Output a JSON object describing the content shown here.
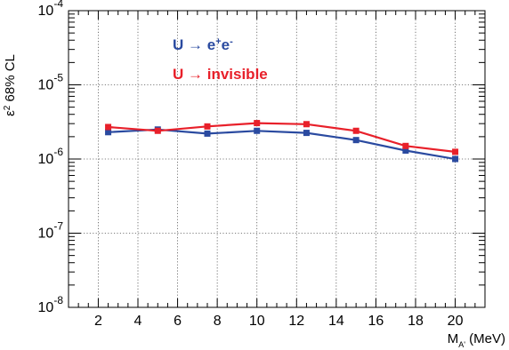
{
  "chart_data": {
    "type": "line",
    "xlabel": {
      "main": "M",
      "sub": "A'",
      "unit": " (MeV)"
    },
    "ylabel": {
      "pre": "ε",
      "sup": "2",
      "post": " 68% CL"
    },
    "xlim": [
      0.5,
      21.5
    ],
    "ylim": [
      1e-08,
      0.0001
    ],
    "yscale": "log",
    "grid": true,
    "x_ticks": [
      {
        "value": 2,
        "label": "2"
      },
      {
        "value": 4,
        "label": "4"
      },
      {
        "value": 6,
        "label": "6"
      },
      {
        "value": 8,
        "label": "8"
      },
      {
        "value": 10,
        "label": "10"
      },
      {
        "value": 12,
        "label": "12"
      },
      {
        "value": 14,
        "label": "14"
      },
      {
        "value": 16,
        "label": "16"
      },
      {
        "value": 18,
        "label": "18"
      },
      {
        "value": 20,
        "label": "20"
      }
    ],
    "y_ticks": [
      {
        "value": 1e-08,
        "base": "10",
        "exp": "-8"
      },
      {
        "value": 1e-07,
        "base": "10",
        "exp": "-7"
      },
      {
        "value": 1e-06,
        "base": "10",
        "exp": "-6"
      },
      {
        "value": 1e-05,
        "base": "10",
        "exp": "-5"
      },
      {
        "value": 0.0001,
        "base": "10",
        "exp": "-4"
      }
    ],
    "legend_placement": "top-left",
    "series": [
      {
        "legend": {
          "main": "U → e",
          "sup1": "+",
          "mid": "e",
          "sup2": "-"
        },
        "color": "#2a4aa0",
        "marker": "square",
        "x": [
          2.5,
          5,
          7.5,
          10,
          12.5,
          15,
          17.5,
          20
        ],
        "values": [
          2.3e-06,
          2.5e-06,
          2.2e-06,
          2.4e-06,
          2.25e-06,
          1.8e-06,
          1.3e-06,
          1e-06
        ]
      },
      {
        "legend": {
          "main": "U → invisible"
        },
        "color": "#e8202a",
        "marker": "square",
        "x": [
          2.5,
          5,
          7.5,
          10,
          12.5,
          15,
          17.5,
          20
        ],
        "values": [
          2.7e-06,
          2.4e-06,
          2.75e-06,
          3.05e-06,
          2.95e-06,
          2.4e-06,
          1.5e-06,
          1.25e-06
        ]
      }
    ]
  }
}
